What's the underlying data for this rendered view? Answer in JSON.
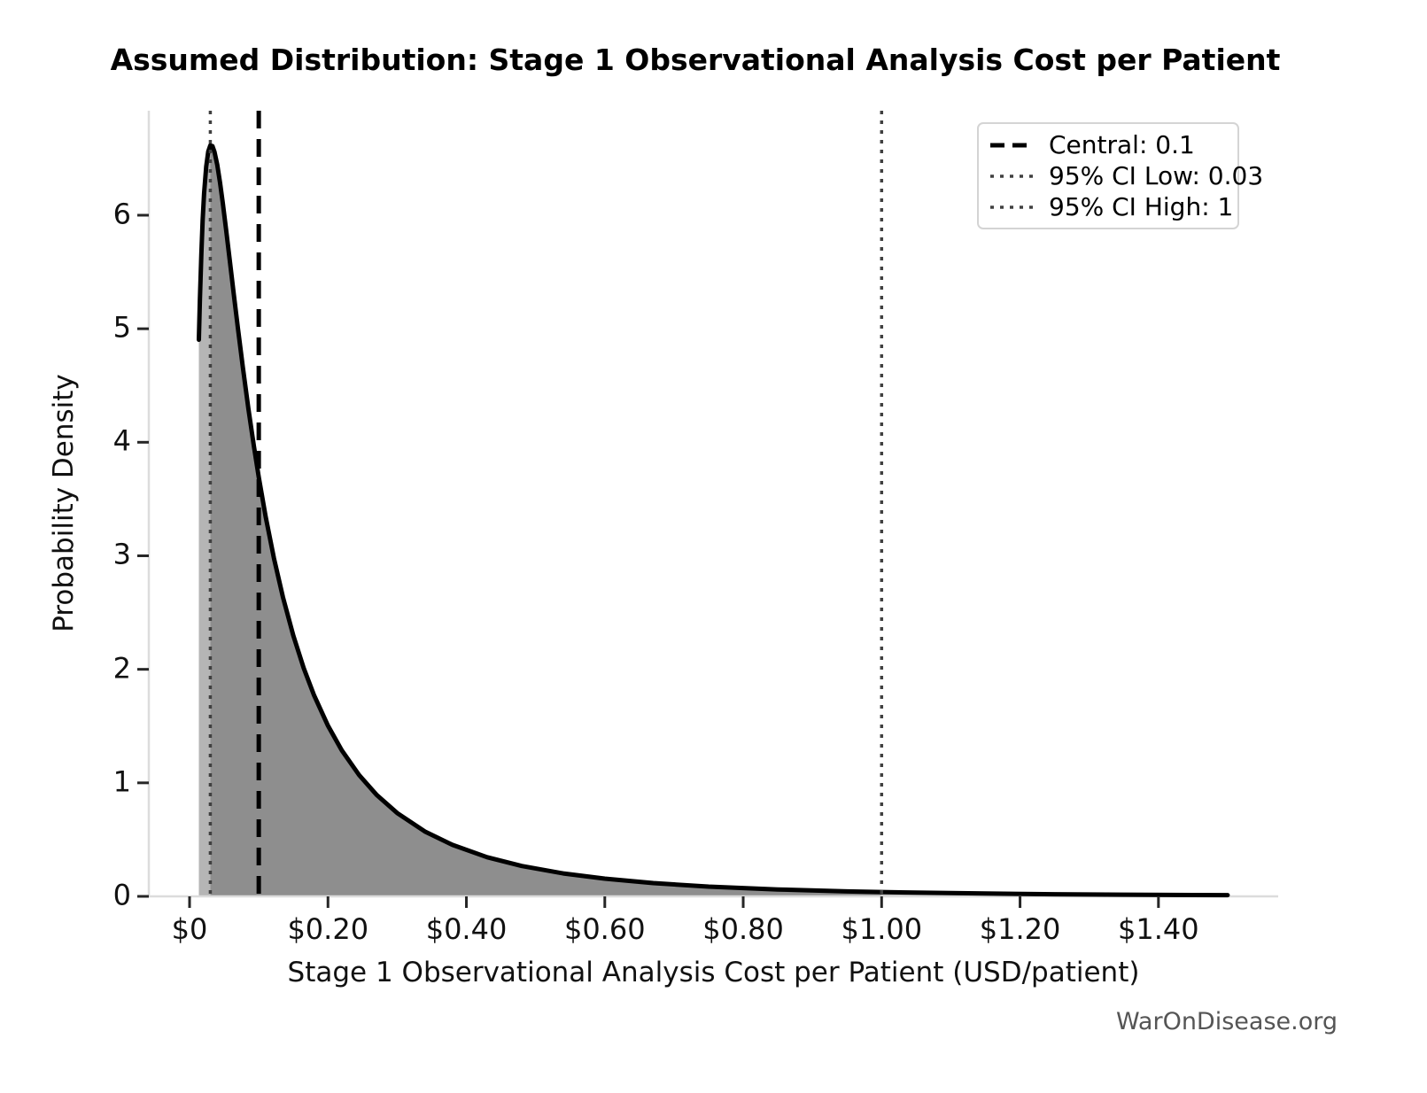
{
  "chart_data": {
    "type": "area",
    "title": "Assumed Distribution: Stage 1 Observational Analysis Cost per Patient",
    "xlabel": "Stage 1 Observational Analysis Cost per Patient (USD/patient)",
    "ylabel": "Probability Density",
    "x_ticks": [
      {
        "value": 0.0,
        "label": "$0"
      },
      {
        "value": 0.2,
        "label": "$0.20"
      },
      {
        "value": 0.4,
        "label": "$0.40"
      },
      {
        "value": 0.6,
        "label": "$0.60"
      },
      {
        "value": 0.8,
        "label": "$0.80"
      },
      {
        "value": 1.0,
        "label": "$1.00"
      },
      {
        "value": 1.2,
        "label": "$1.20"
      },
      {
        "value": 1.4,
        "label": "$1.40"
      }
    ],
    "y_ticks": [
      0,
      1,
      2,
      3,
      4,
      5,
      6
    ],
    "xlim": [
      -0.059,
      1.573
    ],
    "ylim": [
      0,
      6.92
    ],
    "grid": false,
    "legend_position": "upper right",
    "distribution": {
      "family": "lognormal",
      "central": 0.1,
      "ci_low": 0.03,
      "ci_high": 1,
      "sigma_log": 1.08
    },
    "vlines": [
      {
        "x": 0.1,
        "style": "dashed",
        "color": "#000000",
        "width": 5,
        "dash": "20 12"
      },
      {
        "x": 0.03,
        "style": "dotted",
        "color": "#404040",
        "width": 3.5,
        "dash": "4 7"
      },
      {
        "x": 1.0,
        "style": "dotted",
        "color": "#404040",
        "width": 3.5,
        "dash": "4 7"
      }
    ],
    "legend": [
      {
        "label": "Central: 0.1",
        "style": "dashed",
        "color": "#000000"
      },
      {
        "label": "95% CI Low: 0.03",
        "style": "dotted",
        "color": "#404040"
      },
      {
        "label": "95% CI High: 1",
        "style": "dotted",
        "color": "#404040"
      }
    ],
    "curve": [
      [
        0.0135,
        4.904
      ],
      [
        0.015,
        5.264
      ],
      [
        0.017,
        5.655
      ],
      [
        0.019,
        5.96
      ],
      [
        0.021,
        6.192
      ],
      [
        0.024,
        6.428
      ],
      [
        0.027,
        6.561
      ],
      [
        0.03,
        6.614
      ],
      [
        0.033,
        6.609
      ],
      [
        0.036,
        6.559
      ],
      [
        0.04,
        6.443
      ],
      [
        0.044,
        6.288
      ],
      [
        0.048,
        6.108
      ],
      [
        0.053,
        5.863
      ],
      [
        0.058,
        5.608
      ],
      [
        0.064,
        5.299
      ],
      [
        0.07,
        4.997
      ],
      [
        0.077,
        4.659
      ],
      [
        0.085,
        4.297
      ],
      [
        0.093,
        3.963
      ],
      [
        0.1,
        3.694
      ],
      [
        0.11,
        3.345
      ],
      [
        0.122,
        2.977
      ],
      [
        0.135,
        2.633
      ],
      [
        0.15,
        2.295
      ],
      [
        0.165,
        2.01
      ],
      [
        0.18,
        1.77
      ],
      [
        0.2,
        1.503
      ],
      [
        0.22,
        1.286
      ],
      [
        0.245,
        1.069
      ],
      [
        0.27,
        0.896
      ],
      [
        0.3,
        0.734
      ],
      [
        0.34,
        0.572
      ],
      [
        0.38,
        0.453
      ],
      [
        0.43,
        0.345
      ],
      [
        0.48,
        0.268
      ],
      [
        0.54,
        0.202
      ],
      [
        0.6,
        0.156
      ],
      [
        0.67,
        0.117
      ],
      [
        0.75,
        0.086
      ],
      [
        0.85,
        0.061
      ],
      [
        0.95,
        0.044
      ],
      [
        1.0,
        0.038
      ],
      [
        1.05,
        0.033
      ],
      [
        1.15,
        0.025
      ],
      [
        1.25,
        0.019
      ],
      [
        1.35,
        0.015
      ],
      [
        1.45,
        0.012
      ],
      [
        1.5,
        0.011
      ]
    ],
    "colors": {
      "curve": "#000000",
      "fill_ci": "#8e8e8e",
      "fill_tail": "#b5b5b5",
      "spine": "#dcdcdc",
      "tick": "#262626",
      "text": "#111111",
      "watermark": "#555555"
    }
  },
  "watermark": "WarOnDisease.org"
}
